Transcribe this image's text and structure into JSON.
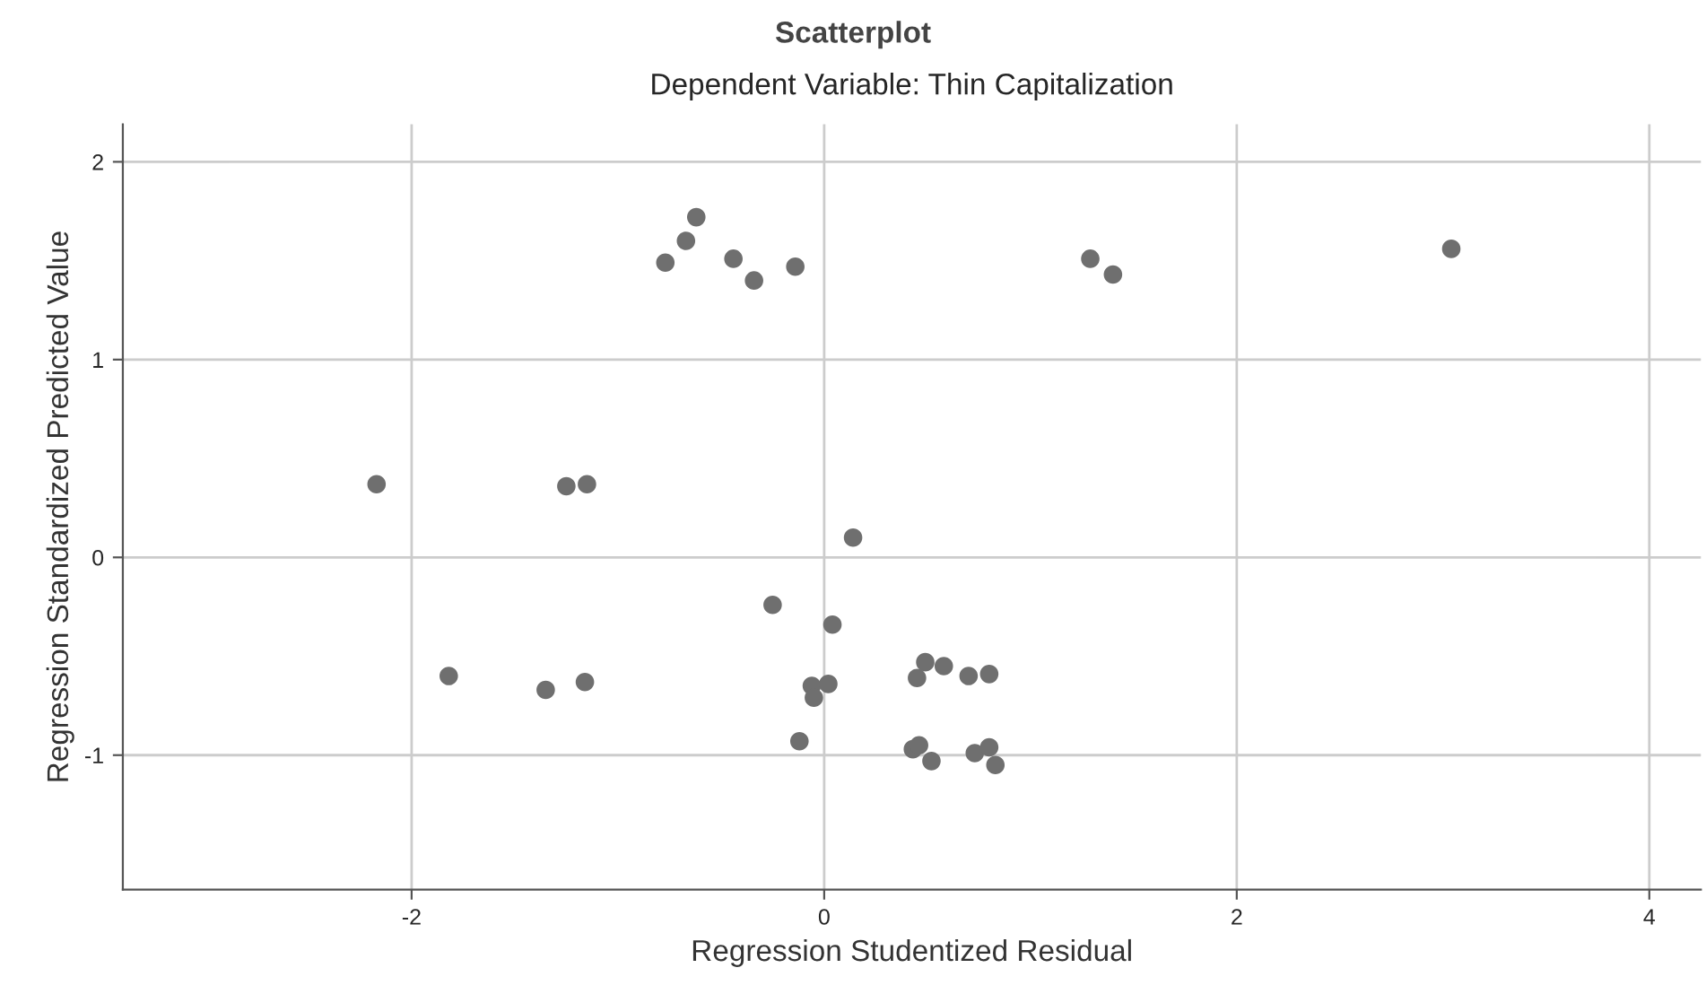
{
  "chart_data": {
    "type": "scatter",
    "title": "Scatterplot",
    "subtitle": "Dependent Variable: Thin Capitalization",
    "xlabel": "Regression Studentized Residual",
    "ylabel": "Regression Standardized Predicted Value",
    "series": [
      {
        "color": "#6f6f6f",
        "x": [
          -0.77,
          -0.67,
          -0.62,
          -0.44,
          -0.34,
          -0.14,
          1.29,
          1.4,
          3.04,
          -2.17,
          -1.25,
          -1.15,
          0.14,
          -0.25,
          0.04,
          -1.82,
          -1.35,
          -1.16,
          -0.06,
          0.02,
          -0.05,
          -0.12,
          0.45,
          0.49,
          0.58,
          0.7,
          0.8,
          0.43,
          0.46,
          0.52,
          0.73,
          0.8,
          0.83
        ],
        "values": [
          1.49,
          1.6,
          1.72,
          1.51,
          1.4,
          1.47,
          1.51,
          1.43,
          1.56,
          0.37,
          0.36,
          0.37,
          0.1,
          -0.24,
          -0.34,
          -0.6,
          -0.67,
          -0.63,
          -0.65,
          -0.64,
          -0.71,
          -0.93,
          -0.61,
          -0.53,
          -0.55,
          -0.6,
          -0.59,
          -0.97,
          -0.95,
          -1.03,
          -0.99,
          -0.96,
          -1.05
        ]
      }
    ],
    "xlim": [
      -3.4,
      4.25
    ],
    "ylim": [
      -1.68,
      2.19
    ],
    "xticks": [
      -2,
      0,
      2,
      4
    ],
    "yticks": [
      -1,
      0,
      1,
      2
    ],
    "grid": true,
    "marker": "circle"
  }
}
